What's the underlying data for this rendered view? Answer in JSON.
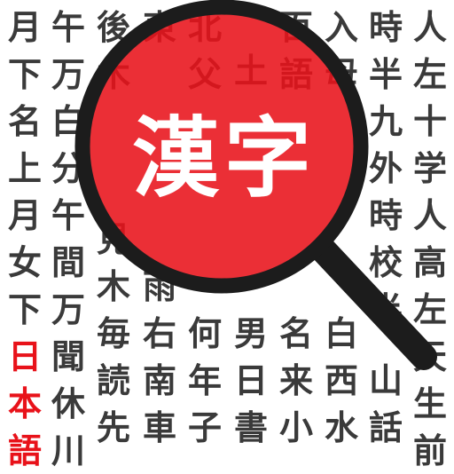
{
  "columns": [
    [
      "月",
      "下",
      "名",
      "上",
      "月",
      "女",
      "下",
      "日",
      "本",
      "語"
    ],
    [
      "午",
      "万",
      "白",
      "分",
      "午",
      "間",
      "万",
      "聞",
      "休",
      "川"
    ],
    [
      "後",
      "木",
      "",
      "",
      "",
      "見",
      "木",
      "毎",
      "読",
      "先"
    ],
    [
      "東",
      "",
      "",
      "",
      "",
      "",
      "雨",
      "右",
      "南",
      "車"
    ],
    [
      "北",
      "父",
      "",
      "",
      "",
      "",
      "",
      "何",
      "年",
      "子"
    ],
    [
      "",
      "土",
      "",
      "",
      "",
      "",
      "",
      "男",
      "日",
      "書"
    ],
    [
      "百",
      "語",
      "",
      "",
      "",
      "",
      "",
      "名",
      "来",
      "小"
    ],
    [
      "入",
      "母",
      "",
      "",
      "",
      "",
      "",
      "白",
      "西",
      "水"
    ],
    [
      "時",
      "半",
      "九",
      "外",
      "時",
      "校",
      "半",
      "",
      "山",
      "話"
    ],
    [
      "人",
      "左",
      "十",
      "学",
      "人",
      "高",
      "左",
      "天",
      "生",
      "前"
    ]
  ],
  "lens_text": "漢字",
  "colors": {
    "lens_red": "#e8121a",
    "frame": "#1c1c1c",
    "kanji": "#3a3a3a",
    "accent": "#e8121a"
  }
}
